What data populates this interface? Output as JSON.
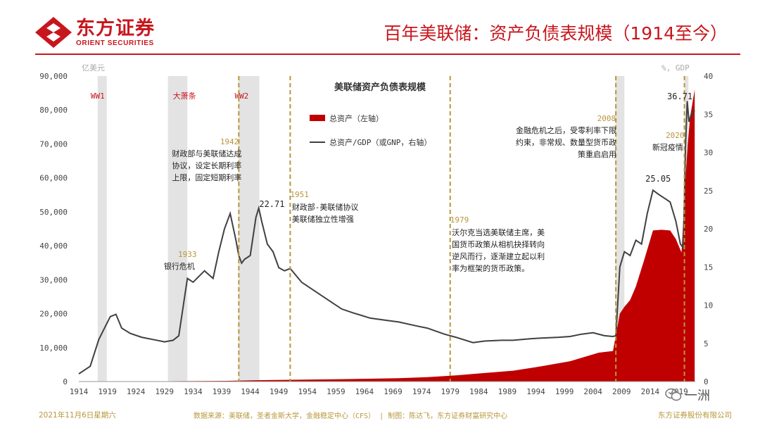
{
  "header": {
    "logo_cn": "东方证券",
    "logo_en": "ORIENT SECURITIES",
    "title": "百年美联储：资产负债表规模（1914至今）"
  },
  "footer": {
    "date": "2021年11月6日星期六",
    "source": "数据来源：美联储，圣者金斯大学，金融稳定中心（CFS） | 制图：陈达飞，东方证券财富研究中心",
    "company": "东方证券股份有限公司"
  },
  "watermark": "一洲",
  "colors": {
    "brand_red": "#c8161d",
    "asset_fill": "#c00000",
    "ratio_line": "#404040",
    "annotation_gold": "#b8963b",
    "shade": "#e3e3e3"
  },
  "chart_data": {
    "type": "area",
    "title": "美联储资产负债表规模",
    "left_axis_unit": "亿美元",
    "right_axis_unit": "%, GDP",
    "ylim_left": [
      0,
      90000
    ],
    "ylim_right": [
      0,
      40
    ],
    "xlim": [
      1914,
      2021.9
    ],
    "left_ticks": [
      0,
      10000,
      20000,
      30000,
      40000,
      50000,
      60000,
      70000,
      80000,
      90000
    ],
    "right_ticks": [
      0,
      5,
      10,
      15,
      20,
      25,
      30,
      35,
      40
    ],
    "x_ticks": [
      1914,
      1919,
      1924,
      1929,
      1934,
      1939,
      1944,
      1949,
      1954,
      1959,
      1964,
      1969,
      1974,
      1979,
      1984,
      1989,
      1994,
      1999,
      2004,
      2009,
      2014,
      2019
    ],
    "x_tick_labels": [
      "1914",
      "1919",
      "1924",
      "1929",
      "1934",
      "1939",
      "1944",
      "1949",
      "1954",
      "1959",
      "1964",
      "1969",
      "1974",
      "1979",
      "1984",
      "1989",
      "1994",
      "1999",
      "2004",
      "2009",
      "2014",
      "2019"
    ],
    "legend": {
      "position": "top-center",
      "entries": [
        "总资产（左轴）",
        "总资产/GDP（或GNP，右轴）"
      ]
    },
    "series": [
      {
        "name": "总资产（左轴）",
        "axis": "left",
        "x": [
          1914,
          1930,
          1940,
          1945,
          1950,
          1960,
          1970,
          1975,
          1980,
          1985,
          1990,
          1995,
          2000,
          2005,
          2007.5,
          2008.7,
          2009.5,
          2010.5,
          2011.5,
          2013,
          2014.5,
          2016,
          2017.5,
          2018.5,
          2019.5,
          2020.2,
          2020.6,
          2021,
          2021.8
        ],
        "values": [
          0,
          100,
          200,
          400,
          500,
          700,
          1000,
          1300,
          1800,
          2500,
          3200,
          4500,
          6000,
          8500,
          9000,
          20000,
          22000,
          24000,
          28000,
          36000,
          44500,
          44700,
          44500,
          42000,
          38000,
          60000,
          70000,
          78000,
          86000
        ]
      },
      {
        "name": "总资产/GDP（或GNP，右轴）",
        "axis": "right",
        "x": [
          1914,
          1916,
          1917.5,
          1918.5,
          1919.5,
          1920.5,
          1921.5,
          1923,
          1925,
          1927,
          1929,
          1930.5,
          1931.5,
          1932.5,
          1933,
          1934,
          1936,
          1937.5,
          1938.5,
          1939.5,
          1940.5,
          1941.5,
          1942,
          1942.5,
          1943,
          1944,
          1945,
          1945.5,
          1946,
          1947,
          1948,
          1949,
          1950,
          1951,
          1953,
          1955,
          1958,
          1960,
          1962,
          1965,
          1968,
          1970,
          1973,
          1975,
          1978,
          1980,
          1983,
          1985,
          1988,
          1990,
          1993,
          1995,
          1998,
          2000,
          2002,
          2004,
          2006,
          2007.5,
          2008,
          2008.7,
          2009.5,
          2010.5,
          2011.5,
          2012.5,
          2013.5,
          2014.5,
          2015.5,
          2016.5,
          2017.5,
          2018.5,
          2019.3,
          2019.8,
          2020.2,
          2020.5,
          2020.8,
          2021.2,
          2021.8
        ],
        "values": [
          1.0,
          2.0,
          5.5,
          7.0,
          8.5,
          8.8,
          7.0,
          6.3,
          5.8,
          5.5,
          5.2,
          5.4,
          6.0,
          11.0,
          13.5,
          13.0,
          14.5,
          13.5,
          17.0,
          20.0,
          22.0,
          18.5,
          16.5,
          15.5,
          16.0,
          16.5,
          21.5,
          22.71,
          21.0,
          18.0,
          17.0,
          14.9,
          14.5,
          14.8,
          13.0,
          12.0,
          10.5,
          9.5,
          9.0,
          8.3,
          8.0,
          7.8,
          7.3,
          7.0,
          6.2,
          5.8,
          5.1,
          5.3,
          5.4,
          5.4,
          5.6,
          5.7,
          5.8,
          5.9,
          6.2,
          6.4,
          6.0,
          5.9,
          6.0,
          15.0,
          17.0,
          16.5,
          18.5,
          18.0,
          22.0,
          25.05,
          24.5,
          24.0,
          23.5,
          21.0,
          18.0,
          17.5,
          31.0,
          36.71,
          34.0,
          35.0,
          35.5
        ]
      }
    ],
    "shaded_periods": [
      {
        "label": "WW1",
        "start": 1917.3,
        "end": 1918.9
      },
      {
        "label": "大萧条",
        "start": 1929.6,
        "end": 1933.0
      },
      {
        "label": "WW2",
        "start": 1941.9,
        "end": 1945.6
      },
      {
        "label": "",
        "start": 2007.9,
        "end": 2009.5
      },
      {
        "label": "",
        "start": 2020.0,
        "end": 2020.7
      }
    ],
    "event_lines": [
      1942,
      1951,
      1979,
      2008,
      2020
    ],
    "annotations": [
      {
        "year_label": "1933",
        "text": [
          "银行危机"
        ]
      },
      {
        "year_label": "1942",
        "text": [
          "财政部与美联储达成",
          "协议，设定长期利率",
          "上限，固定短期利率"
        ]
      },
      {
        "year_label": "1951",
        "text": [
          "财政部-美联储协议",
          "美联储独立性增强"
        ]
      },
      {
        "year_label": "1979",
        "text": [
          "沃尔克当选美联储主席，美",
          "国货币政策从相机抉择转向",
          "逆风而行，逐渐建立起以利",
          "率为框架的货币政策。"
        ]
      },
      {
        "year_label": "2008",
        "text": [
          "金融危机之后，受零利率下限",
          "约束，非常规、数量型货币政",
          "策重启启用"
        ]
      },
      {
        "year_label": "2020",
        "text": [
          "新冠疫情"
        ]
      }
    ],
    "peak_labels": [
      "22.71",
      "25.05",
      "36.71"
    ]
  }
}
